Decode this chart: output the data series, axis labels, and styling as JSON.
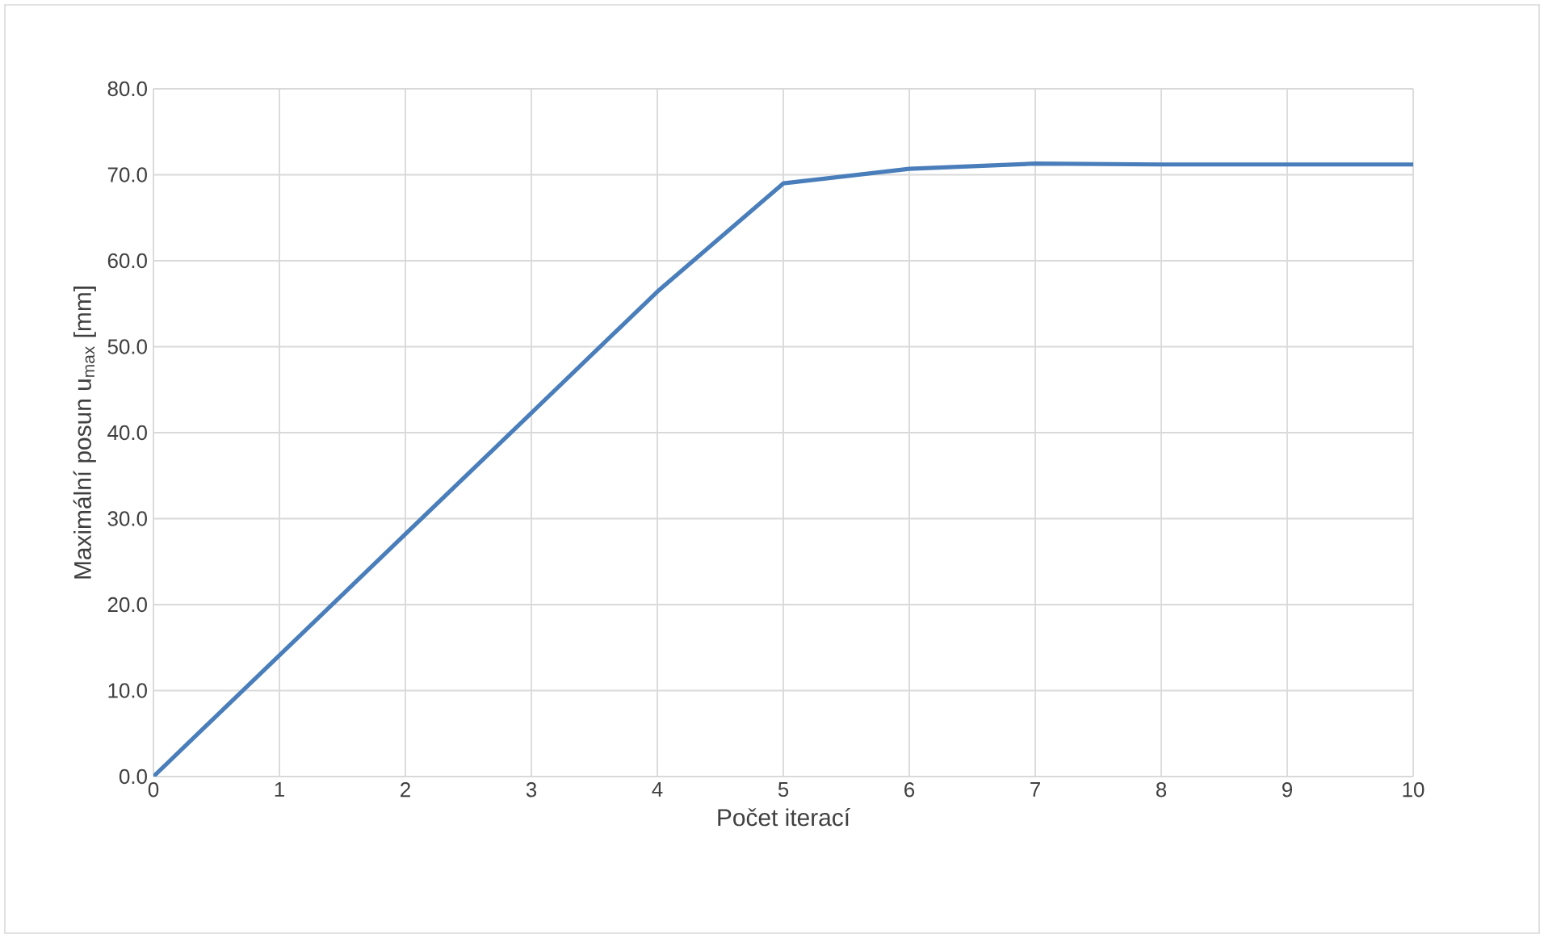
{
  "chart_data": {
    "type": "line",
    "xlabel": "Počet iterací",
    "ylabel": "Maximální posun u$_{max}$ [mm]",
    "x": [
      0,
      1,
      2,
      3,
      4,
      5,
      6,
      7,
      8,
      9,
      10
    ],
    "series": [
      {
        "color": "#4a7ebb",
        "values": [
          0.0,
          14.1,
          28.2,
          42.3,
          56.4,
          69.0,
          70.7,
          71.3,
          71.2,
          71.2,
          71.2
        ]
      }
    ],
    "xlim": [
      0,
      10
    ],
    "xticks": [
      0,
      1,
      2,
      3,
      4,
      5,
      6,
      7,
      8,
      9,
      10
    ],
    "ylim": [
      0,
      80
    ],
    "yticks": [
      {
        "value": 0,
        "label": "0.0"
      },
      {
        "value": 10,
        "label": "10.0"
      },
      {
        "value": 20,
        "label": "20.0"
      },
      {
        "value": 30,
        "label": "30.0"
      },
      {
        "value": 40,
        "label": "40.0"
      },
      {
        "value": 50,
        "label": "50.0"
      },
      {
        "value": 60,
        "label": "60.0"
      },
      {
        "value": 70,
        "label": "70.0"
      },
      {
        "value": 80,
        "label": "80.0"
      }
    ],
    "grid": true,
    "legend": false,
    "marker": "none",
    "line_style": "solid"
  }
}
